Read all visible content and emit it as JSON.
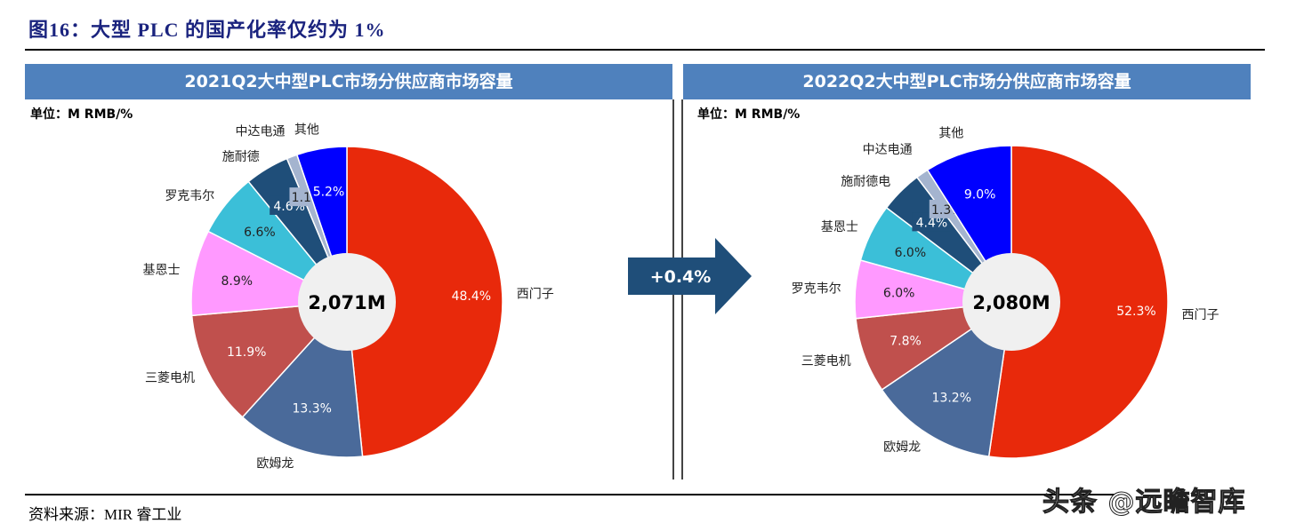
{
  "figure_title": "图16：大型 PLC 的国产化率仅约为 1%",
  "source": "资料来源：MIR 睿工业",
  "watermark": "头条 @远瞻智库",
  "arrow_label": "+0.4%",
  "chart_data": [
    {
      "type": "pie",
      "title": "2021Q2大中型PLC市场分供应商市场容量",
      "unit": "单位：M RMB/%",
      "center_label": "2,071M",
      "total": 2071,
      "categories": [
        "西门子",
        "欧姆龙",
        "三菱电机",
        "基恩士",
        "罗克韦尔",
        "施耐德",
        "中达电通",
        "其他"
      ],
      "values": [
        48.4,
        13.3,
        11.9,
        8.9,
        6.6,
        4.6,
        1.1,
        5.2
      ],
      "value_labels": [
        "48.4%",
        "13.3%",
        "11.9%",
        "8.9%",
        "6.6%",
        "4.6%",
        "1.1%",
        "5.2%"
      ],
      "colors": [
        "#e8290b",
        "#4a6a9a",
        "#c0504d",
        "#ff99ff",
        "#3bbfd8",
        "#1f4e79",
        "#a4b4cf",
        "#0000ff"
      ]
    },
    {
      "type": "pie",
      "title": "2022Q2大中型PLC市场分供应商市场容量",
      "unit": "单位：M RMB/%",
      "center_label": "2,080M",
      "total": 2080,
      "categories": [
        "西门子",
        "欧姆龙",
        "三菱电机",
        "罗克韦尔",
        "基恩士",
        "施耐德电",
        "中达电通",
        "其他"
      ],
      "values": [
        52.3,
        13.2,
        7.8,
        6.0,
        6.0,
        4.4,
        1.3,
        9.0
      ],
      "value_labels": [
        "52.3%",
        "13.2%",
        "7.8%",
        "6.0%",
        "6.0%",
        "4.4%",
        "1.3%",
        "9.0%"
      ],
      "colors": [
        "#e8290b",
        "#4a6a9a",
        "#c0504d",
        "#ff99ff",
        "#3bbfd8",
        "#1f4e79",
        "#a4b4cf",
        "#0000ff"
      ]
    }
  ]
}
